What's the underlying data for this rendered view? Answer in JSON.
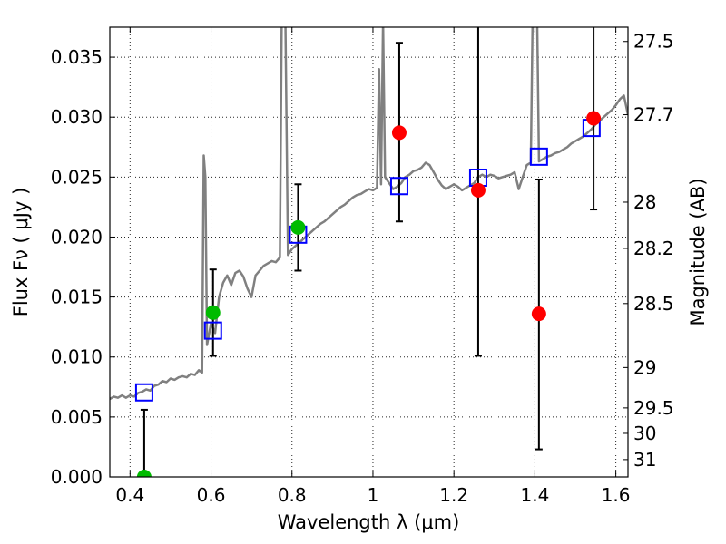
{
  "chart_data": {
    "type": "scatter",
    "xlabel": "Wavelength  λ (μm)",
    "ylabel_left": "Flux  Fν  ( μJy )",
    "ylabel_right": "Magnitude (AB)",
    "xlim": [
      0.35,
      1.63
    ],
    "ylim": [
      0.0,
      0.0375
    ],
    "x_ticks": [
      {
        "value": 0.4,
        "label": "0.4"
      },
      {
        "value": 0.6,
        "label": "0.6"
      },
      {
        "value": 0.8,
        "label": "0.8"
      },
      {
        "value": 1.0,
        "label": "1"
      },
      {
        "value": 1.2,
        "label": "1.2"
      },
      {
        "value": 1.4,
        "label": "1.4"
      },
      {
        "value": 1.6,
        "label": "1.6"
      }
    ],
    "y_ticks": [
      {
        "value": 0.0,
        "label": "0.000"
      },
      {
        "value": 0.005,
        "label": "0.005"
      },
      {
        "value": 0.01,
        "label": "0.010"
      },
      {
        "value": 0.015,
        "label": "0.015"
      },
      {
        "value": 0.02,
        "label": "0.020"
      },
      {
        "value": 0.025,
        "label": "0.025"
      },
      {
        "value": 0.03,
        "label": "0.030"
      },
      {
        "value": 0.035,
        "label": "0.035"
      }
    ],
    "right_ticks": [
      {
        "value": 27.5,
        "label": "27.5"
      },
      {
        "value": 27.7,
        "label": "27.7"
      },
      {
        "value": 28.0,
        "label": "28"
      },
      {
        "value": 28.2,
        "label": "28.2"
      },
      {
        "value": 28.5,
        "label": "28.5"
      },
      {
        "value": 29.0,
        "label": "29"
      },
      {
        "value": 29.5,
        "label": "29.5"
      },
      {
        "value": 30.0,
        "label": "30"
      },
      {
        "value": 31.0,
        "label": "31"
      }
    ],
    "grid": true,
    "colors": {
      "template": "#808080",
      "model_box": "#0000ff",
      "detection": "#00bb00",
      "upper_limit": "#ff0000",
      "errorbar": "#000000"
    },
    "template_spectrum": [
      [
        0.35,
        0.0065
      ],
      [
        0.36,
        0.0067
      ],
      [
        0.37,
        0.0066
      ],
      [
        0.38,
        0.0068
      ],
      [
        0.39,
        0.0066
      ],
      [
        0.4,
        0.0068
      ],
      [
        0.41,
        0.0067
      ],
      [
        0.42,
        0.007
      ],
      [
        0.43,
        0.0071
      ],
      [
        0.44,
        0.0073
      ],
      [
        0.45,
        0.0072
      ],
      [
        0.46,
        0.0076
      ],
      [
        0.47,
        0.0077
      ],
      [
        0.48,
        0.008
      ],
      [
        0.49,
        0.0079
      ],
      [
        0.5,
        0.0082
      ],
      [
        0.51,
        0.0081
      ],
      [
        0.52,
        0.0083
      ],
      [
        0.53,
        0.0084
      ],
      [
        0.54,
        0.0083
      ],
      [
        0.55,
        0.0086
      ],
      [
        0.56,
        0.0085
      ],
      [
        0.57,
        0.0089
      ],
      [
        0.578,
        0.0087
      ],
      [
        0.582,
        0.0268
      ],
      [
        0.586,
        0.025
      ],
      [
        0.59,
        0.011
      ],
      [
        0.6,
        0.0128
      ],
      [
        0.61,
        0.012
      ],
      [
        0.62,
        0.015
      ],
      [
        0.63,
        0.0162
      ],
      [
        0.64,
        0.0168
      ],
      [
        0.65,
        0.016
      ],
      [
        0.66,
        0.017
      ],
      [
        0.67,
        0.0172
      ],
      [
        0.68,
        0.0167
      ],
      [
        0.69,
        0.0157
      ],
      [
        0.7,
        0.015
      ],
      [
        0.71,
        0.0168
      ],
      [
        0.72,
        0.0172
      ],
      [
        0.73,
        0.0176
      ],
      [
        0.74,
        0.0178
      ],
      [
        0.75,
        0.018
      ],
      [
        0.76,
        0.0179
      ],
      [
        0.77,
        0.0183
      ],
      [
        0.775,
        0.04
      ],
      [
        0.783,
        0.04
      ],
      [
        0.79,
        0.0185
      ],
      [
        0.8,
        0.019
      ],
      [
        0.81,
        0.0193
      ],
      [
        0.82,
        0.0196
      ],
      [
        0.83,
        0.0199
      ],
      [
        0.84,
        0.0202
      ],
      [
        0.85,
        0.0205
      ],
      [
        0.86,
        0.0208
      ],
      [
        0.87,
        0.0211
      ],
      [
        0.88,
        0.0213
      ],
      [
        0.89,
        0.0216
      ],
      [
        0.9,
        0.0219
      ],
      [
        0.91,
        0.0222
      ],
      [
        0.92,
        0.0225
      ],
      [
        0.93,
        0.0227
      ],
      [
        0.94,
        0.023
      ],
      [
        0.95,
        0.0233
      ],
      [
        0.96,
        0.0235
      ],
      [
        0.97,
        0.0236
      ],
      [
        0.98,
        0.0238
      ],
      [
        0.99,
        0.024
      ],
      [
        1.0,
        0.0239
      ],
      [
        1.01,
        0.0241
      ],
      [
        1.015,
        0.034
      ],
      [
        1.02,
        0.0244
      ],
      [
        1.025,
        0.038
      ],
      [
        1.03,
        0.025
      ],
      [
        1.04,
        0.0245
      ],
      [
        1.05,
        0.024
      ],
      [
        1.06,
        0.0242
      ],
      [
        1.07,
        0.0245
      ],
      [
        1.08,
        0.025
      ],
      [
        1.09,
        0.0252
      ],
      [
        1.1,
        0.0255
      ],
      [
        1.11,
        0.0256
      ],
      [
        1.12,
        0.0258
      ],
      [
        1.13,
        0.0262
      ],
      [
        1.14,
        0.026
      ],
      [
        1.15,
        0.0254
      ],
      [
        1.16,
        0.0248
      ],
      [
        1.17,
        0.0243
      ],
      [
        1.18,
        0.024
      ],
      [
        1.19,
        0.0242
      ],
      [
        1.2,
        0.0244
      ],
      [
        1.21,
        0.0242
      ],
      [
        1.22,
        0.0239
      ],
      [
        1.23,
        0.0241
      ],
      [
        1.24,
        0.0243
      ],
      [
        1.25,
        0.0245
      ],
      [
        1.26,
        0.025
      ],
      [
        1.27,
        0.0252
      ],
      [
        1.28,
        0.025
      ],
      [
        1.29,
        0.0252
      ],
      [
        1.3,
        0.0251
      ],
      [
        1.31,
        0.0249
      ],
      [
        1.32,
        0.025
      ],
      [
        1.33,
        0.0251
      ],
      [
        1.34,
        0.0252
      ],
      [
        1.35,
        0.0254
      ],
      [
        1.36,
        0.024
      ],
      [
        1.37,
        0.025
      ],
      [
        1.38,
        0.026
      ],
      [
        1.39,
        0.0262
      ],
      [
        1.395,
        0.04
      ],
      [
        1.405,
        0.04
      ],
      [
        1.41,
        0.0263
      ],
      [
        1.42,
        0.0265
      ],
      [
        1.43,
        0.0267
      ],
      [
        1.44,
        0.0268
      ],
      [
        1.45,
        0.027
      ],
      [
        1.46,
        0.0271
      ],
      [
        1.47,
        0.0273
      ],
      [
        1.48,
        0.0275
      ],
      [
        1.49,
        0.0278
      ],
      [
        1.5,
        0.028
      ],
      [
        1.51,
        0.0282
      ],
      [
        1.52,
        0.0284
      ],
      [
        1.53,
        0.0287
      ],
      [
        1.54,
        0.029
      ],
      [
        1.55,
        0.0294
      ],
      [
        1.56,
        0.0297
      ],
      [
        1.57,
        0.03
      ],
      [
        1.58,
        0.0303
      ],
      [
        1.59,
        0.0306
      ],
      [
        1.6,
        0.031
      ],
      [
        1.61,
        0.0315
      ],
      [
        1.62,
        0.0318
      ],
      [
        1.63,
        0.0302
      ]
    ],
    "model_boxes": [
      {
        "x": 0.435,
        "y": 0.00705
      },
      {
        "x": 0.605,
        "y": 0.0122
      },
      {
        "x": 0.815,
        "y": 0.0202
      },
      {
        "x": 1.065,
        "y": 0.02425
      },
      {
        "x": 1.26,
        "y": 0.02495
      },
      {
        "x": 1.41,
        "y": 0.0267
      },
      {
        "x": 1.54,
        "y": 0.0291
      }
    ],
    "detections": [
      {
        "x": 0.435,
        "y": 0.0,
        "err_low": 0.0,
        "err_high": 0.0056
      },
      {
        "x": 0.605,
        "y": 0.0137,
        "err_low": 0.0101,
        "err_high": 0.0173
      },
      {
        "x": 0.815,
        "y": 0.0208,
        "err_low": 0.0172,
        "err_high": 0.0244
      }
    ],
    "upper_limits": [
      {
        "x": 1.065,
        "y": 0.0287,
        "err_low": 0.0213,
        "err_high": 0.0362
      },
      {
        "x": 1.26,
        "y": 0.0239,
        "err_low": 0.0101,
        "err_high": 0.038
      },
      {
        "x": 1.41,
        "y": 0.0136,
        "err_low": 0.0023,
        "err_high": 0.0248
      },
      {
        "x": 1.545,
        "y": 0.0299,
        "err_low": 0.0223,
        "err_high": 0.038
      }
    ]
  }
}
